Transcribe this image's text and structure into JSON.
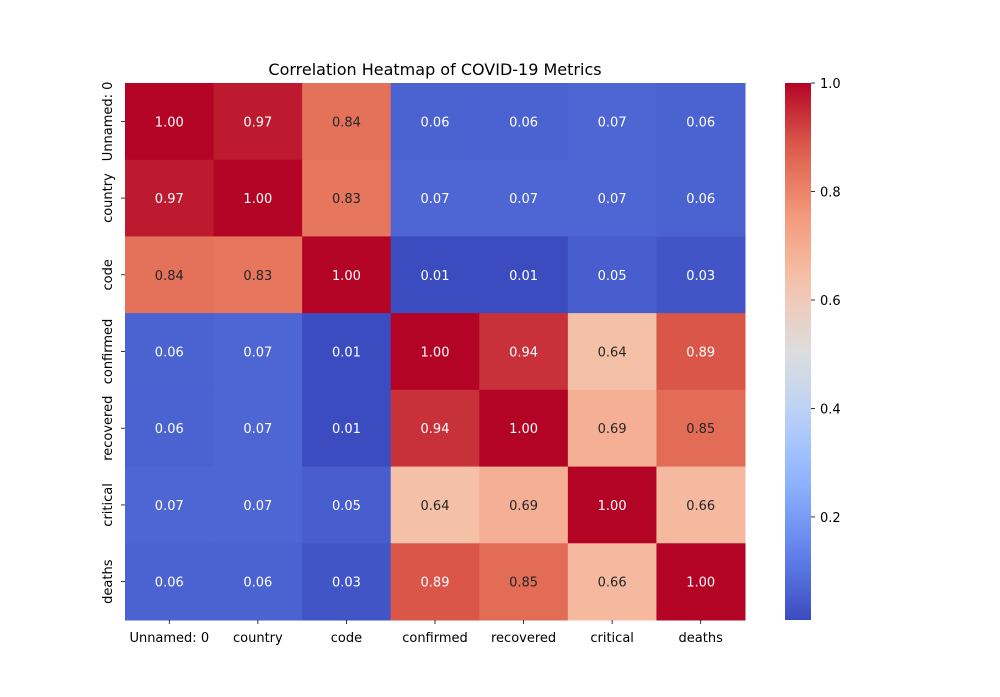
{
  "chart_data": {
    "type": "heatmap",
    "title": "Correlation Heatmap of COVID-19 Metrics",
    "x_labels": [
      "Unnamed: 0",
      "country",
      "code",
      "confirmed",
      "recovered",
      "critical",
      "deaths"
    ],
    "y_labels": [
      "Unnamed: 0",
      "country",
      "code",
      "confirmed",
      "recovered",
      "critical",
      "deaths"
    ],
    "values": [
      [
        1.0,
        0.97,
        0.84,
        0.06,
        0.06,
        0.07,
        0.06
      ],
      [
        0.97,
        1.0,
        0.83,
        0.07,
        0.07,
        0.07,
        0.06
      ],
      [
        0.84,
        0.83,
        1.0,
        0.01,
        0.01,
        0.05,
        0.03
      ],
      [
        0.06,
        0.07,
        0.01,
        1.0,
        0.94,
        0.64,
        0.89
      ],
      [
        0.06,
        0.07,
        0.01,
        0.94,
        1.0,
        0.69,
        0.85
      ],
      [
        0.07,
        0.07,
        0.05,
        0.64,
        0.69,
        1.0,
        0.66
      ],
      [
        0.06,
        0.06,
        0.03,
        0.89,
        0.85,
        0.66,
        1.0
      ]
    ],
    "colormap": "coolwarm",
    "vmin": 0.01,
    "vmax": 1.0,
    "colorbar_ticks": [
      "0.2",
      "0.4",
      "0.6",
      "0.8",
      "1.0"
    ],
    "annotation_format": "0.00"
  }
}
